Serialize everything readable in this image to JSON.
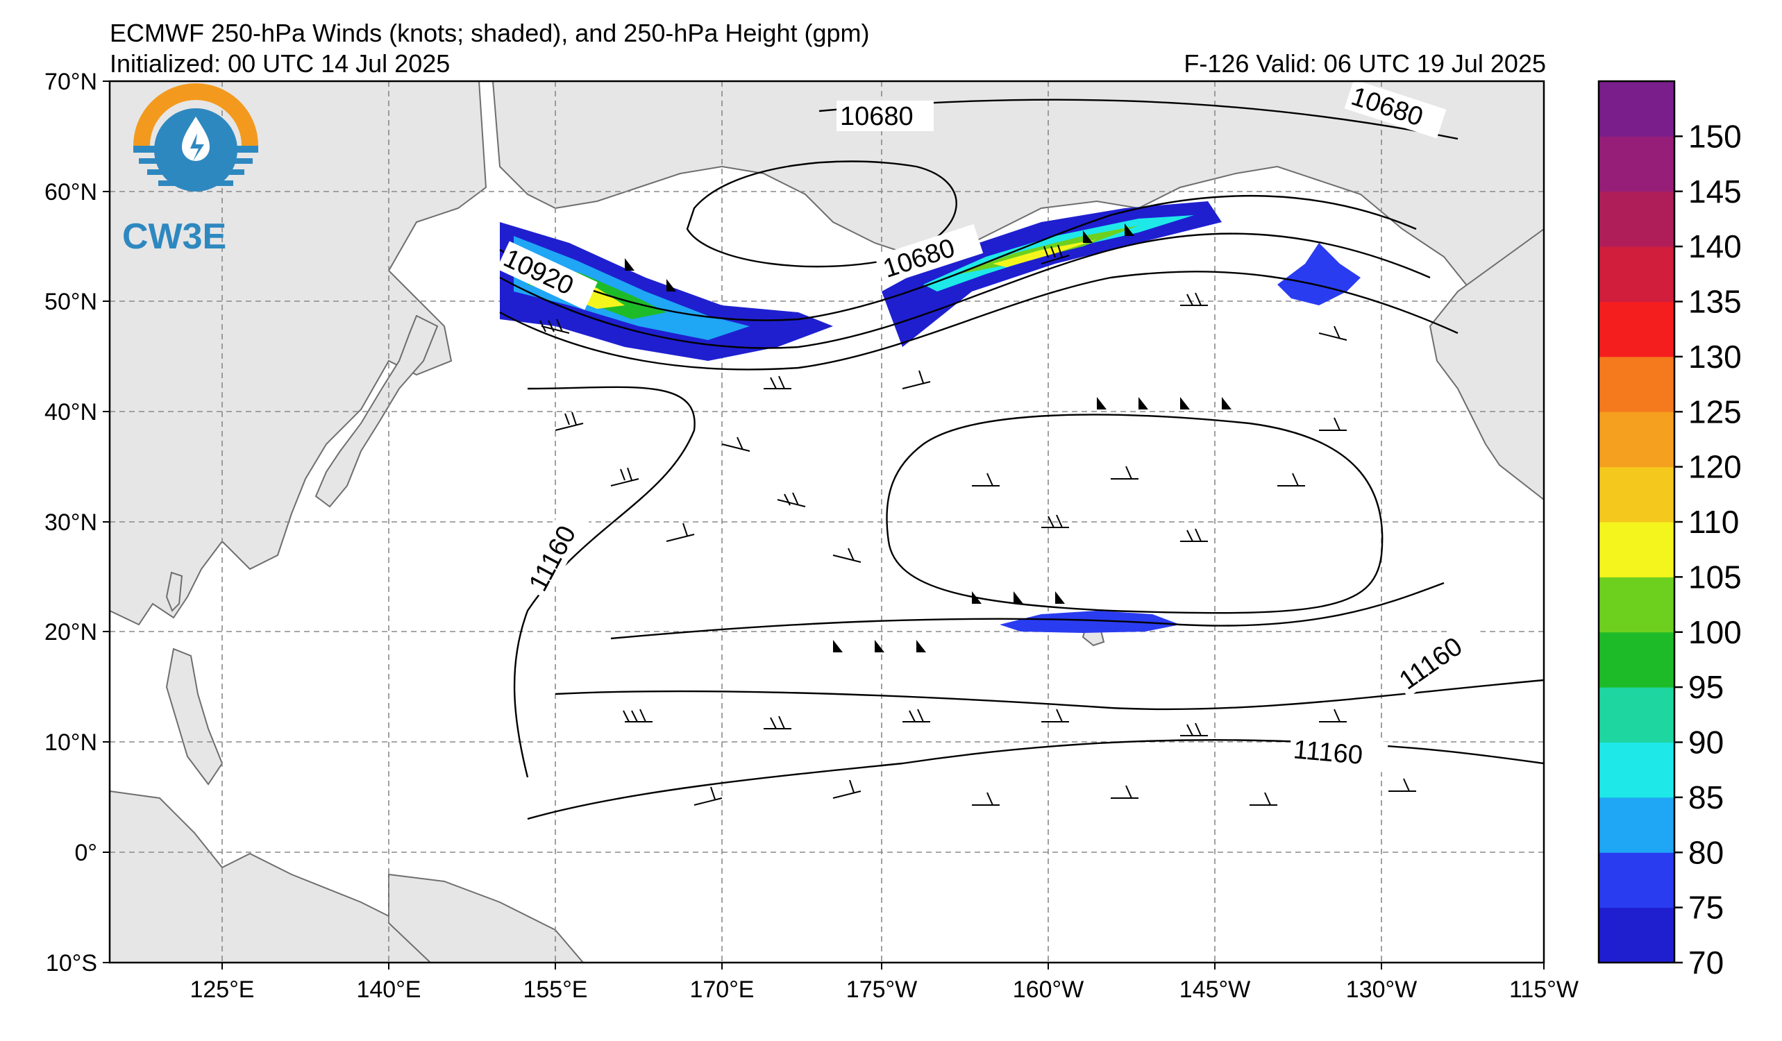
{
  "title": "ECMWF 250-hPa Winds (knots; shaded), and 250-hPa Height (gpm)",
  "initialized": "Initialized: 00 UTC 14 Jul 2025",
  "valid": "F-126  Valid: 06 UTC 19 Jul 2025",
  "logo_text": "CW3E",
  "lat_labels": [
    "70°N",
    "60°N",
    "50°N",
    "40°N",
    "30°N",
    "20°N",
    "10°N",
    "0°",
    "10°S"
  ],
  "lon_labels": [
    "125°E",
    "140°E",
    "155°E",
    "170°E",
    "175°W",
    "160°W",
    "145°W",
    "130°W",
    "115°W"
  ],
  "contour_labels": [
    "10680",
    "10680",
    "10680",
    "10920",
    "11160",
    "11160",
    "11160"
  ],
  "colorbar": {
    "ticks": [
      "70",
      "75",
      "80",
      "85",
      "90",
      "95",
      "100",
      "105",
      "110",
      "120",
      "125",
      "130",
      "135",
      "140",
      "145",
      "150"
    ],
    "colors": [
      "#1f1fd0",
      "#2a3cf0",
      "#1fa6f5",
      "#1fe8e8",
      "#1ed6a0",
      "#1ebb28",
      "#6ed01e",
      "#f5f51e",
      "#f5c81e",
      "#f5a01e",
      "#f57a1e",
      "#f51e1e",
      "#d01e3c",
      "#b01e5a",
      "#961e78",
      "#7a1e8c"
    ]
  },
  "colors": {
    "land": "#e6e6e6",
    "coast": "#6e6e6e",
    "grid": "#888888"
  }
}
